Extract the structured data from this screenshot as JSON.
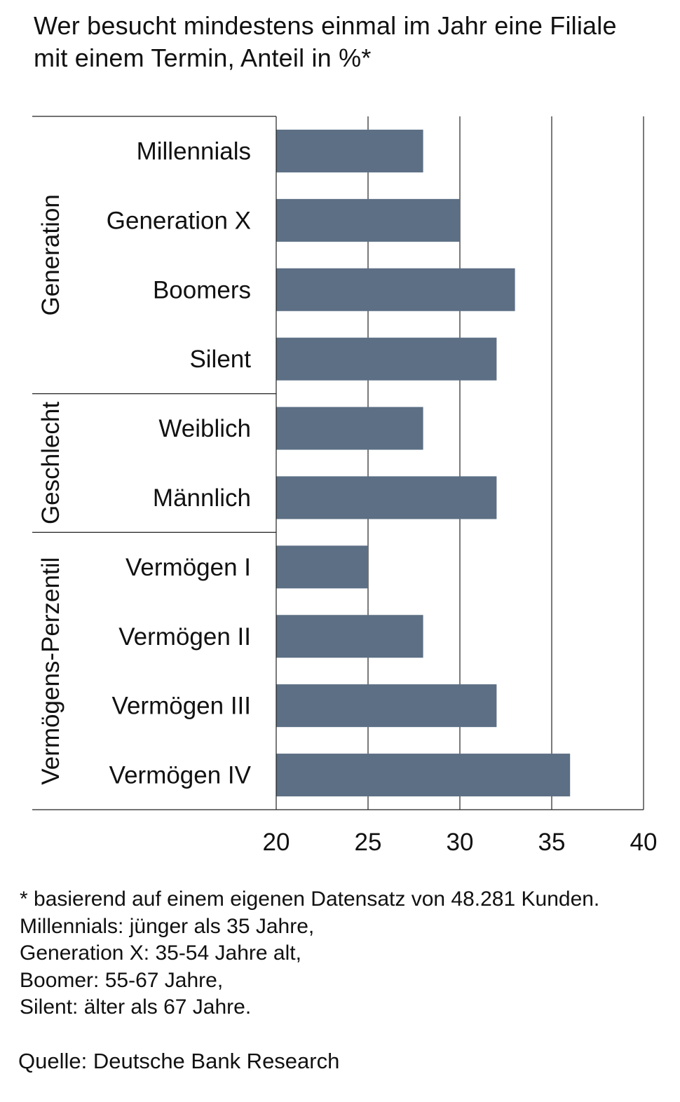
{
  "title_lines": [
    "Wer besucht mindestens einmal im Jahr eine Filiale",
    "mit einem Termin, Anteil in %*"
  ],
  "chart_data": {
    "type": "bar",
    "orientation": "horizontal",
    "title": "Wer besucht mindestens einmal im Jahr eine Filiale mit einem Termin, Anteil in %*",
    "categories": [
      "Millennials",
      "Generation X",
      "Boomers",
      "Silent",
      "Weiblich",
      "Männlich",
      "Vermögen I",
      "Vermögen II",
      "Vermögen III",
      "Vermögen IV"
    ],
    "values": [
      28,
      30,
      33,
      32,
      28,
      32,
      25,
      28,
      32,
      36
    ],
    "groups": [
      {
        "label": "Generation",
        "categories": [
          "Millennials",
          "Generation X",
          "Boomers",
          "Silent"
        ]
      },
      {
        "label": "Geschlecht",
        "categories": [
          "Weiblich",
          "Männlich"
        ]
      },
      {
        "label": "Vermögens-Perzentil",
        "categories": [
          "Vermögen I",
          "Vermögen II",
          "Vermögen III",
          "Vermögen IV"
        ]
      }
    ],
    "xlim": [
      20,
      40
    ],
    "xticks": [
      "20",
      "25",
      "30",
      "35",
      "40"
    ],
    "grid": true,
    "bar_color": "#5c6f84"
  },
  "footnote_lines": [
    "* basierend auf einem eigenen Datensatz von 48.281 Kunden.",
    "Millennials: jünger als 35 Jahre,",
    "Generation X: 35-54 Jahre alt,",
    "Boomer: 55-67 Jahre,",
    "Silent: älter als 67 Jahre."
  ],
  "source": "Quelle: Deutsche Bank Research"
}
